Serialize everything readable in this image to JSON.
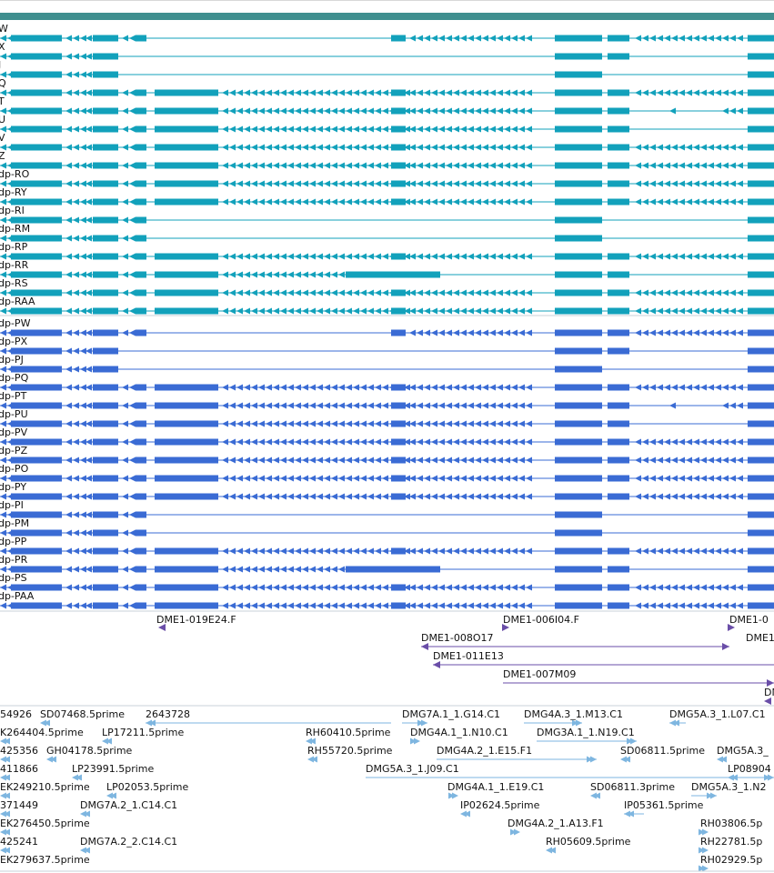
{
  "colors": {
    "transcript_rna": "#12a1bb",
    "transcript_protein": "#3a6bd4",
    "clone": "#6a4ea8",
    "est": "#7eb6e0",
    "header_bar": "#3f8f8f"
  },
  "rna_track": {
    "rows": [
      {
        "label": "W",
        "pattern": "A"
      },
      {
        "label": "X",
        "pattern": "B"
      },
      {
        "label": "J",
        "pattern": "C"
      },
      {
        "label": "Q",
        "pattern": "D"
      },
      {
        "label": "T",
        "pattern": "E"
      },
      {
        "label": "U",
        "pattern": "F"
      },
      {
        "label": "V",
        "pattern": "D"
      },
      {
        "label": "Z",
        "pattern": "D"
      },
      {
        "label": "dp-RO",
        "pattern": "D"
      },
      {
        "label": "dp-RY",
        "pattern": "D"
      },
      {
        "label": "dp-RI",
        "pattern": "G"
      },
      {
        "label": "dp-RM",
        "pattern": "G"
      },
      {
        "label": "dp-RP",
        "pattern": "D"
      },
      {
        "label": "dp-RR",
        "pattern": "H"
      },
      {
        "label": "dp-RS",
        "pattern": "D"
      },
      {
        "label": "dp-RAA",
        "pattern": "D"
      }
    ]
  },
  "protein_track": {
    "rows": [
      {
        "label": "dp-PW",
        "pattern": "A"
      },
      {
        "label": "dp-PX",
        "pattern": "B"
      },
      {
        "label": "dp-PJ",
        "pattern": "C"
      },
      {
        "label": "dp-PQ",
        "pattern": "D"
      },
      {
        "label": "dp-PT",
        "pattern": "E"
      },
      {
        "label": "dp-PU",
        "pattern": "F"
      },
      {
        "label": "dp-PV",
        "pattern": "D"
      },
      {
        "label": "dp-PZ",
        "pattern": "D"
      },
      {
        "label": "dp-PO",
        "pattern": "D"
      },
      {
        "label": "dp-PY",
        "pattern": "D"
      },
      {
        "label": "dp-PI",
        "pattern": "G"
      },
      {
        "label": "dp-PM",
        "pattern": "G"
      },
      {
        "label": "dp-PP",
        "pattern": "D"
      },
      {
        "label": "dp-PR",
        "pattern": "H"
      },
      {
        "label": "dp-PS",
        "pattern": "D"
      },
      {
        "label": "dp-PAA",
        "pattern": "D"
      }
    ]
  },
  "clones_track": {
    "features": [
      {
        "label": "DME1-019E24.F",
        "dir": "left"
      },
      {
        "label": "DME1-006I04.F",
        "dir": "right"
      },
      {
        "label": "DME1-0",
        "dir": "right"
      },
      {
        "label": "DME1-008O17",
        "dir": "both"
      },
      {
        "label": "DME1",
        "dir": "none"
      },
      {
        "label": "DME1-011E13",
        "dir": "left"
      },
      {
        "label": "DME1-007M09",
        "dir": "right"
      },
      {
        "label": "DM",
        "dir": "left"
      }
    ]
  },
  "est_track": {
    "features": [
      {
        "label": "54926"
      },
      {
        "label": "SD07468.5prime"
      },
      {
        "label": "2643728"
      },
      {
        "label": "DMG7A.1_1.G14.C1"
      },
      {
        "label": "DMG4A.3_1.M13.C1"
      },
      {
        "label": "DMG5A.3_1.L07.C1"
      },
      {
        "label": "K264404.5prime"
      },
      {
        "label": "LP17211.5prime"
      },
      {
        "label": "RH60410.5prime"
      },
      {
        "label": "DMG4A.1_1.N10.C1"
      },
      {
        "label": "DMG3A.1_1.N19.C1"
      },
      {
        "label": "425356"
      },
      {
        "label": "GH04178.5prime"
      },
      {
        "label": "RH55720.5prime"
      },
      {
        "label": "DMG4A.2_1.E15.F1"
      },
      {
        "label": "SD06811.5prime"
      },
      {
        "label": "DMG5A.3_"
      },
      {
        "label": "411866"
      },
      {
        "label": "LP23991.5prime"
      },
      {
        "label": "DMG5A.3_1.J09.C1"
      },
      {
        "label": "LP08904"
      },
      {
        "label": "EK249210.5prime"
      },
      {
        "label": "LP02053.5prime"
      },
      {
        "label": "DMG4A.1_1.E19.C1"
      },
      {
        "label": "SD06811.3prime"
      },
      {
        "label": "DMG5A.3_1.N2"
      },
      {
        "label": "371449"
      },
      {
        "label": "DMG7A.2_1.C14.C1"
      },
      {
        "label": "IP02624.5prime"
      },
      {
        "label": "IP05361.5prime"
      },
      {
        "label": "EK276450.5prime"
      },
      {
        "label": "DMG4A.2_1.A13.F1"
      },
      {
        "label": "RH03806.5p"
      },
      {
        "label": "425241"
      },
      {
        "label": "DMG7A.2_2.C14.C1"
      },
      {
        "label": "RH05609.5prime"
      },
      {
        "label": "RH22781.5p"
      },
      {
        "label": "EK279637.5prime"
      },
      {
        "label": "RH02929.5p"
      }
    ]
  }
}
